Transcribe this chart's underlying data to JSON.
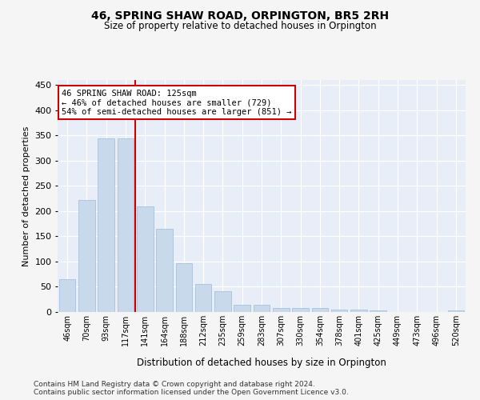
{
  "title": "46, SPRING SHAW ROAD, ORPINGTON, BR5 2RH",
  "subtitle": "Size of property relative to detached houses in Orpington",
  "xlabel": "Distribution of detached houses by size in Orpington",
  "ylabel": "Number of detached properties",
  "bin_labels": [
    "46sqm",
    "70sqm",
    "93sqm",
    "117sqm",
    "141sqm",
    "164sqm",
    "188sqm",
    "212sqm",
    "235sqm",
    "259sqm",
    "283sqm",
    "307sqm",
    "330sqm",
    "354sqm",
    "378sqm",
    "401sqm",
    "425sqm",
    "449sqm",
    "473sqm",
    "496sqm",
    "520sqm"
  ],
  "bar_values": [
    65,
    222,
    344,
    344,
    210,
    165,
    97,
    55,
    42,
    15,
    15,
    8,
    8,
    8,
    5,
    5,
    3,
    0,
    0,
    0,
    3
  ],
  "bar_color": "#c9d9ec",
  "bar_edge_color": "#a0b8d8",
  "background_color": "#e8eef7",
  "grid_color": "#ffffff",
  "annotation_text": "46 SPRING SHAW ROAD: 125sqm\n← 46% of detached houses are smaller (729)\n54% of semi-detached houses are larger (851) →",
  "annotation_box_color": "#ffffff",
  "annotation_box_edge": "#cc0000",
  "red_line_color": "#cc0000",
  "ylim": [
    0,
    460
  ],
  "yticks": [
    0,
    50,
    100,
    150,
    200,
    250,
    300,
    350,
    400,
    450
  ],
  "footer_line1": "Contains HM Land Registry data © Crown copyright and database right 2024.",
  "footer_line2": "Contains public sector information licensed under the Open Government Licence v3.0."
}
